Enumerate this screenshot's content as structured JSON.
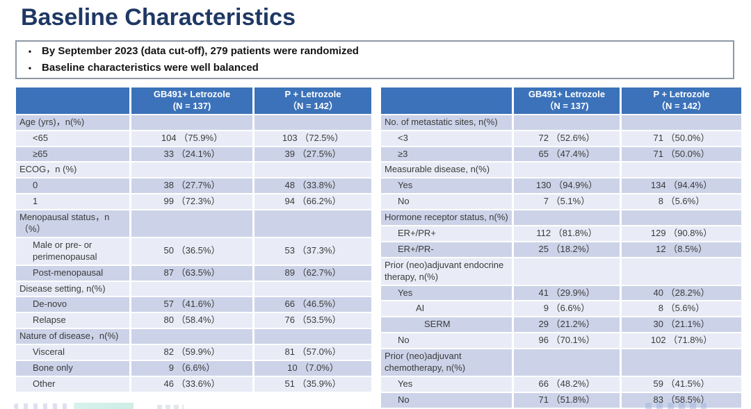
{
  "title": "Baseline Characteristics",
  "bullets": [
    "By September 2023 (data cut-off), 279 patients were randomized",
    "Baseline characteristics were well balanced"
  ],
  "colors": {
    "title_navy": "#1F3864",
    "header_bg": "#3C72B9",
    "header_text": "#FFFFFF",
    "band_dark": "#CCD3E8",
    "band_light": "#E9ECF6"
  },
  "tables": [
    {
      "name": "baseline-characteristics-left",
      "columns": [
        {
          "line1": "",
          "line2": ""
        },
        {
          "line1": "GB491+ Letrozole",
          "line2": "(N = 137)"
        },
        {
          "line1": "P + Letrozole",
          "line2": "（N = 142）"
        }
      ],
      "rows": [
        {
          "label": "Age (yrs)，n(%)",
          "indent": 0,
          "values": [
            "",
            ""
          ]
        },
        {
          "label": "<65",
          "indent": 1,
          "values": [
            "104 （75.9%）",
            "103 （72.5%）"
          ]
        },
        {
          "label": "≥65",
          "indent": 1,
          "values": [
            "33 （24.1%）",
            "39 （27.5%）"
          ]
        },
        {
          "label": "ECOG，n (%)",
          "indent": 0,
          "values": [
            "",
            ""
          ]
        },
        {
          "label": "0",
          "indent": 1,
          "values": [
            "38 （27.7%）",
            "48 （33.8%）"
          ]
        },
        {
          "label": "1",
          "indent": 1,
          "values": [
            "99 （72.3%）",
            "94 （66.2%）"
          ]
        },
        {
          "label": "Menopausal status，n （%）",
          "indent": 0,
          "values": [
            "",
            ""
          ]
        },
        {
          "label": "Male or pre- or perimenopausal",
          "indent": 1,
          "values": [
            "50 （36.5%）",
            "53 （37.3%）"
          ]
        },
        {
          "label": "Post-menopausal",
          "indent": 1,
          "values": [
            "87 （63.5%）",
            "89 （62.7%）"
          ]
        },
        {
          "label": "Disease setting, n(%)",
          "indent": 0,
          "values": [
            "",
            ""
          ]
        },
        {
          "label": "De-novo",
          "indent": 1,
          "values": [
            "57 （41.6%）",
            "66 （46.5%）"
          ]
        },
        {
          "label": "Relapse",
          "indent": 1,
          "values": [
            "80 （58.4%）",
            "76 （53.5%）"
          ]
        },
        {
          "label": "Nature of disease，n(%)",
          "indent": 0,
          "values": [
            "",
            ""
          ]
        },
        {
          "label": "Visceral",
          "indent": 1,
          "values": [
            "82 （59.9%）",
            "81 （57.0%）"
          ]
        },
        {
          "label": "Bone only",
          "indent": 1,
          "values": [
            "9 （6.6%）",
            "10 （7.0%）"
          ]
        },
        {
          "label": "Other",
          "indent": 1,
          "values": [
            "46 （33.6%）",
            "51 （35.9%）"
          ]
        }
      ]
    },
    {
      "name": "baseline-characteristics-right",
      "columns": [
        {
          "line1": "",
          "line2": ""
        },
        {
          "line1": "GB491+ Letrozole",
          "line2": "（N = 137)"
        },
        {
          "line1": "P + Letrozole",
          "line2": "（N = 142）"
        }
      ],
      "rows": [
        {
          "label": "No. of metastatic sites, n(%)",
          "indent": 0,
          "values": [
            "",
            ""
          ]
        },
        {
          "label": "<3",
          "indent": 1,
          "values": [
            "72 （52.6%）",
            "71 （50.0%）"
          ]
        },
        {
          "label": "≥3",
          "indent": 1,
          "values": [
            "65 （47.4%）",
            "71 （50.0%）"
          ]
        },
        {
          "label": "Measurable disease, n(%)",
          "indent": 0,
          "values": [
            "",
            ""
          ]
        },
        {
          "label": "Yes",
          "indent": 1,
          "values": [
            "130 （94.9%）",
            "134 （94.4%）"
          ]
        },
        {
          "label": "No",
          "indent": 1,
          "values": [
            "7 （5.1%）",
            "8 （5.6%）"
          ]
        },
        {
          "label": "Hormone receptor status, n(%)",
          "indent": 0,
          "values": [
            "",
            ""
          ]
        },
        {
          "label": "ER+/PR+",
          "indent": 1,
          "values": [
            "112 （81.8%）",
            "129 （90.8%）"
          ]
        },
        {
          "label": "ER+/PR-",
          "indent": 1,
          "values": [
            "25 （18.2%）",
            "12 （8.5%）"
          ]
        },
        {
          "label": "Prior (neo)adjuvant endocrine therapy, n(%)",
          "indent": 0,
          "values": [
            "",
            ""
          ]
        },
        {
          "label": "Yes",
          "indent": 1,
          "values": [
            "41 （29.9%）",
            "40 （28.2%）"
          ]
        },
        {
          "label": "AI",
          "indent": 2,
          "values": [
            "9 （6.6%）",
            "8 （5.6%）"
          ]
        },
        {
          "label": "SERM",
          "indent": 3,
          "values": [
            "29 （21.2%）",
            "30 （21.1%）"
          ]
        },
        {
          "label": "No",
          "indent": 1,
          "values": [
            "96 （70.1%）",
            "102 （71.8%）"
          ]
        },
        {
          "label": "Prior (neo)adjuvant chemotherapy, n(%)",
          "indent": 0,
          "values": [
            "",
            ""
          ]
        },
        {
          "label": "Yes",
          "indent": 1,
          "values": [
            "66 （48.2%）",
            "59 （41.5%）"
          ]
        },
        {
          "label": "No",
          "indent": 1,
          "values": [
            "71 （51.8%）",
            "83 （58.5%）"
          ]
        }
      ]
    }
  ]
}
